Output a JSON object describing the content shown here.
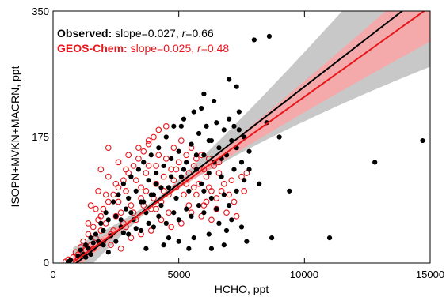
{
  "chart_data": {
    "type": "scatter",
    "xlabel": "HCHO, ppt",
    "ylabel": "ISOPN+MVKN+MACRN, ppt",
    "xlim": [
      0,
      15000
    ],
    "ylim": [
      0,
      350
    ],
    "x_ticks": [
      "0",
      "5000",
      "10000",
      "15000"
    ],
    "y_ticks": [
      "0",
      "175",
      "350"
    ],
    "grid": false,
    "series": [
      {
        "name": "Observed",
        "marker": "filled-circle",
        "color": "#000000",
        "stats_label": "Observed:",
        "slope_text": "slope=0.027,",
        "r_symbol": "r",
        "r_value_text": "=0.66",
        "fit": {
          "slope": 0.027,
          "intercept": -25,
          "x_range": [
            800,
            15000
          ]
        },
        "ci_band_color": "#c8c8c8",
        "points": [
          [
            600,
            2
          ],
          [
            700,
            4
          ],
          [
            1000,
            10
          ],
          [
            1100,
            18
          ],
          [
            1200,
            12
          ],
          [
            1300,
            25
          ],
          [
            1400,
            20
          ],
          [
            1500,
            35
          ],
          [
            1600,
            28
          ],
          [
            1700,
            40
          ],
          [
            1800,
            30
          ],
          [
            1900,
            55
          ],
          [
            2000,
            45
          ],
          [
            2100,
            70
          ],
          [
            2200,
            60
          ],
          [
            2300,
            38
          ],
          [
            2400,
            85
          ],
          [
            2500,
            65
          ],
          [
            2600,
            95
          ],
          [
            2700,
            50
          ],
          [
            2800,
            110
          ],
          [
            2900,
            75
          ],
          [
            3000,
            90
          ],
          [
            3100,
            120
          ],
          [
            3200,
            60
          ],
          [
            3300,
            100
          ],
          [
            3400,
            130
          ],
          [
            3500,
            85
          ],
          [
            3600,
            140
          ],
          [
            3700,
            70
          ],
          [
            3800,
            115
          ],
          [
            3900,
            150
          ],
          [
            4000,
            95
          ],
          [
            4100,
            125
          ],
          [
            4200,
            160
          ],
          [
            4300,
            80
          ],
          [
            4400,
            135
          ],
          [
            4500,
            175
          ],
          [
            4600,
            105
          ],
          [
            4700,
            145
          ],
          [
            4800,
            190
          ],
          [
            4900,
            90
          ],
          [
            5000,
            155
          ],
          [
            5100,
            120
          ],
          [
            5200,
            200
          ],
          [
            5300,
            140
          ],
          [
            5400,
            100
          ],
          [
            5500,
            165
          ],
          [
            5600,
            210
          ],
          [
            5700,
            130
          ],
          [
            5800,
            180
          ],
          [
            5900,
            110
          ],
          [
            6000,
            150
          ],
          [
            6100,
            190
          ],
          [
            6200,
            125
          ],
          [
            6300,
            170
          ],
          [
            6400,
            140
          ],
          [
            6500,
            195
          ],
          [
            6600,
            160
          ],
          [
            6700,
            120
          ],
          [
            6800,
            185
          ],
          [
            6900,
            150
          ],
          [
            7000,
            200
          ],
          [
            7100,
            170
          ],
          [
            7200,
            130
          ],
          [
            7300,
            160
          ],
          [
            7400,
            185
          ],
          [
            7500,
            140
          ],
          [
            7600,
            175
          ],
          [
            7800,
            155
          ],
          [
            3000,
            40
          ],
          [
            3500,
            45
          ],
          [
            4000,
            50
          ],
          [
            4500,
            55
          ],
          [
            5000,
            60
          ],
          [
            5500,
            65
          ],
          [
            6000,
            70
          ],
          [
            6500,
            75
          ],
          [
            7000,
            80
          ],
          [
            2500,
            30
          ],
          [
            4200,
            65
          ],
          [
            4800,
            70
          ],
          [
            5300,
            75
          ],
          [
            5800,
            80
          ],
          [
            6300,
            90
          ],
          [
            6800,
            95
          ],
          [
            7300,
            100
          ],
          [
            3800,
            55
          ],
          [
            3300,
            48
          ],
          [
            2800,
            42
          ],
          [
            5000,
            30
          ],
          [
            5600,
            35
          ],
          [
            6200,
            40
          ],
          [
            6900,
            45
          ],
          [
            7500,
            50
          ],
          [
            4400,
            25
          ],
          [
            3700,
            20
          ],
          [
            6600,
            55
          ],
          [
            7100,
            60
          ],
          [
            6000,
            100
          ],
          [
            6300,
            20
          ],
          [
            6800,
            25
          ],
          [
            5400,
            20
          ],
          [
            4600,
            35
          ],
          [
            2200,
            15
          ],
          [
            3600,
            85
          ],
          [
            4100,
            110
          ],
          [
            4700,
            120
          ],
          [
            5200,
            130
          ],
          [
            5700,
            150
          ],
          [
            6200,
            170
          ],
          [
            6700,
            145
          ],
          [
            7200,
            190
          ],
          [
            7400,
            210
          ],
          [
            7800,
            130
          ],
          [
            6000,
            235
          ],
          [
            7300,
            245
          ],
          [
            7000,
            255
          ],
          [
            7700,
            30
          ],
          [
            8500,
            195
          ],
          [
            8000,
            310
          ],
          [
            8600,
            315
          ],
          [
            14700,
            170
          ],
          [
            12800,
            140
          ],
          [
            9400,
            100
          ],
          [
            8700,
            35
          ],
          [
            11000,
            35
          ],
          [
            9000,
            175
          ],
          [
            8200,
            110
          ],
          [
            7600,
            115
          ],
          [
            5900,
            215
          ],
          [
            6400,
            225
          ],
          [
            5100,
            190
          ],
          [
            4300,
            105
          ],
          [
            3900,
            95
          ],
          [
            3100,
            70
          ],
          [
            2700,
            60
          ],
          [
            2000,
            25
          ],
          [
            1500,
            12
          ],
          [
            1300,
            8
          ]
        ]
      },
      {
        "name": "GEOS-Chem",
        "marker": "open-circle",
        "color": "#e8151b",
        "stats_label": "GEOS-Chem:",
        "slope_text": "slope=0.025,",
        "r_symbol": "r",
        "r_value_text": "=0.48",
        "fit": {
          "slope": 0.025,
          "intercept": -19,
          "x_range": [
            800,
            15000
          ]
        },
        "ci_band_color": "#f4aaaa",
        "points": [
          [
            500,
            2
          ],
          [
            600,
            5
          ],
          [
            800,
            8
          ],
          [
            900,
            15
          ],
          [
            1000,
            12
          ],
          [
            1100,
            22
          ],
          [
            1200,
            30
          ],
          [
            1300,
            18
          ],
          [
            1400,
            40
          ],
          [
            1500,
            25
          ],
          [
            1600,
            50
          ],
          [
            1700,
            35
          ],
          [
            1800,
            60
          ],
          [
            1900,
            45
          ],
          [
            2000,
            75
          ],
          [
            2100,
            55
          ],
          [
            2200,
            85
          ],
          [
            2300,
            40
          ],
          [
            2400,
            95
          ],
          [
            2500,
            65
          ],
          [
            2600,
            105
          ],
          [
            2700,
            70
          ],
          [
            2800,
            115
          ],
          [
            2900,
            50
          ],
          [
            3000,
            125
          ],
          [
            3100,
            80
          ],
          [
            3200,
            135
          ],
          [
            3300,
            60
          ],
          [
            3400,
            145
          ],
          [
            3500,
            90
          ],
          [
            3600,
            155
          ],
          [
            3700,
            100
          ],
          [
            3800,
            165
          ],
          [
            3900,
            75
          ],
          [
            4000,
            175
          ],
          [
            4100,
            110
          ],
          [
            4200,
            185
          ],
          [
            4300,
            85
          ],
          [
            4400,
            120
          ],
          [
            4500,
            190
          ],
          [
            4600,
            95
          ],
          [
            4700,
            130
          ],
          [
            4800,
            160
          ],
          [
            4900,
            105
          ],
          [
            5000,
            140
          ],
          [
            5100,
            170
          ],
          [
            5200,
            115
          ],
          [
            5300,
            150
          ],
          [
            5400,
            125
          ],
          [
            5500,
            160
          ],
          [
            5600,
            135
          ],
          [
            5700,
            145
          ],
          [
            5800,
            110
          ],
          [
            5900,
            150
          ],
          [
            6000,
            130
          ],
          [
            6100,
            120
          ],
          [
            6200,
            145
          ],
          [
            6300,
            100
          ],
          [
            6400,
            135
          ],
          [
            6500,
            90
          ],
          [
            6600,
            125
          ],
          [
            6800,
            110
          ],
          [
            7000,
            95
          ],
          [
            7200,
            85
          ],
          [
            1200,
            10
          ],
          [
            1600,
            20
          ],
          [
            2000,
            30
          ],
          [
            2400,
            45
          ],
          [
            2800,
            55
          ],
          [
            3200,
            70
          ],
          [
            3600,
            80
          ],
          [
            4000,
            90
          ],
          [
            4400,
            100
          ],
          [
            4800,
            115
          ],
          [
            5200,
            95
          ],
          [
            5600,
            105
          ],
          [
            6000,
            80
          ],
          [
            1800,
            100
          ],
          [
            2200,
            120
          ],
          [
            2600,
            140
          ],
          [
            3000,
            150
          ],
          [
            3400,
            160
          ],
          [
            3800,
            170
          ],
          [
            4200,
            150
          ],
          [
            1400,
            55
          ],
          [
            1700,
            75
          ],
          [
            2100,
            95
          ],
          [
            2500,
            110
          ],
          [
            2900,
            130
          ],
          [
            3300,
            115
          ],
          [
            3700,
            125
          ],
          [
            4100,
            135
          ],
          [
            4500,
            145
          ],
          [
            4900,
            130
          ],
          [
            5300,
            110
          ],
          [
            5700,
            95
          ],
          [
            6100,
            85
          ],
          [
            6500,
            75
          ],
          [
            6900,
            70
          ],
          [
            7300,
            65
          ],
          [
            1500,
            80
          ],
          [
            1900,
            65
          ],
          [
            2300,
            25
          ],
          [
            2700,
            20
          ],
          [
            3100,
            35
          ],
          [
            3500,
            40
          ],
          [
            3900,
            45
          ],
          [
            4300,
            60
          ],
          [
            4700,
            50
          ],
          [
            5100,
            55
          ],
          [
            5500,
            70
          ],
          [
            5900,
            65
          ],
          [
            6300,
            60
          ],
          [
            6700,
            100
          ],
          [
            7100,
            115
          ],
          [
            7500,
            120
          ],
          [
            7700,
            125
          ],
          [
            1000,
            5
          ],
          [
            1900,
            130
          ],
          [
            2600,
            85
          ],
          [
            2200,
            160
          ],
          [
            3800,
            135
          ],
          [
            4600,
            70
          ],
          [
            5400,
            80
          ],
          [
            6200,
            105
          ],
          [
            7600,
            100
          ],
          [
            6600,
            140
          ],
          [
            2900,
            100
          ],
          [
            3500,
            105
          ],
          [
            4100,
            75
          ]
        ]
      }
    ]
  }
}
